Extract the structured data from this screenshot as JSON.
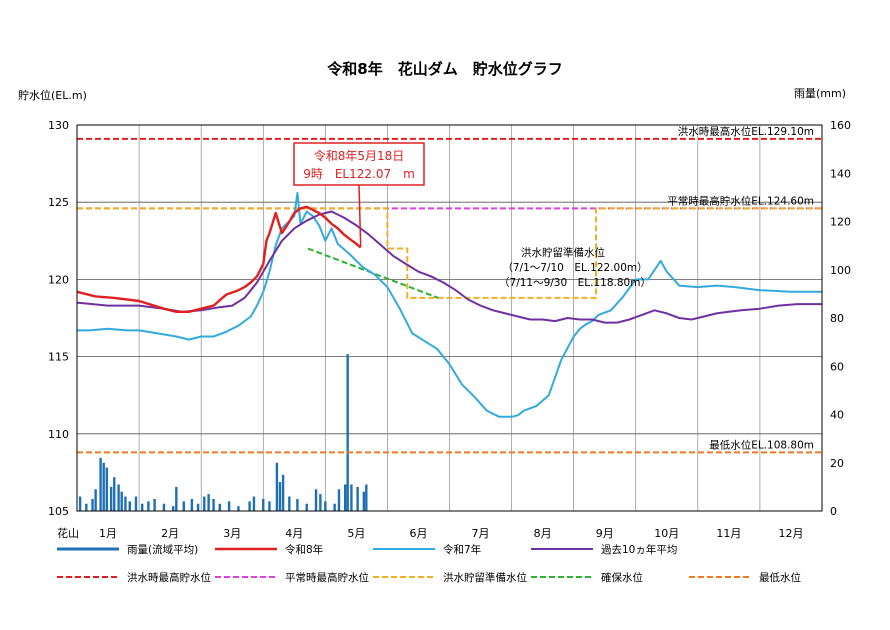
{
  "chart_data": {
    "type": "line",
    "title": "令和8年　花山ダム　貯水位グラフ",
    "ylabel_left": "貯水位(EL.m)",
    "ylabel_right": "雨量(mm)",
    "ylim_left": [
      105,
      130
    ],
    "yticks_left": [
      105,
      110,
      115,
      120,
      125,
      130
    ],
    "ylim_right": [
      0,
      160
    ],
    "yticks_right": [
      0,
      20,
      40,
      60,
      80,
      100,
      120,
      140,
      160
    ],
    "x_axis_start_label": "花山",
    "xlim_months": [
      0,
      12
    ],
    "month_labels": [
      "1月",
      "2月",
      "3月",
      "4月",
      "5月",
      "6月",
      "7月",
      "8月",
      "9月",
      "10月",
      "11月",
      "12月"
    ],
    "current_value": {
      "label_line1": "令和8年5月18日",
      "label_line2": "9時　EL122.07　m",
      "month": 4.57,
      "level": 122.07
    },
    "reference_lines": [
      {
        "name": "洪水時最高貯水位",
        "value": 129.1,
        "label": "洪水時最高水位EL.129.10m",
        "color": "#e02020"
      },
      {
        "name": "平常時最高貯水位",
        "value": 124.6,
        "label": "平常時最高貯水位EL.124.60m",
        "color": "#e040e0"
      },
      {
        "name": "最低水位",
        "value": 108.8,
        "label": "最低水位EL.108.80m",
        "color": "#f07820"
      }
    ],
    "flood_prep_label": [
      "洪水貯留準備水位",
      "（7/1～7/10　EL.122.00m）",
      "（7/11～9/30　EL.118.80m）"
    ],
    "flood_prep_line": {
      "name": "洪水貯留準備水位",
      "color": "#f0b020",
      "x": [
        0,
        5.0,
        5.0,
        5.32,
        5.32,
        8.36,
        8.36,
        12
      ],
      "y": [
        124.6,
        124.6,
        122.0,
        122.0,
        118.8,
        118.8,
        124.6,
        124.6
      ]
    },
    "secure_line": {
      "name": "確保水位",
      "color": "#30b030",
      "x": [
        3.72,
        5.82
      ],
      "y": [
        122.0,
        118.8
      ]
    },
    "series": [
      {
        "name": "令和8年",
        "color": "#e02020",
        "x": [
          0,
          0.3,
          0.6,
          1.0,
          1.4,
          1.6,
          1.8,
          2.0,
          2.2,
          2.4,
          2.6,
          2.7,
          2.8,
          2.9,
          3.0,
          3.05,
          3.1,
          3.2,
          3.3,
          3.4,
          3.5,
          3.6,
          3.7,
          3.8,
          3.9,
          4.0,
          4.1,
          4.2,
          4.3,
          4.4,
          4.5,
          4.57
        ],
        "y": [
          119.2,
          118.9,
          118.8,
          118.6,
          118.1,
          117.9,
          117.9,
          118.1,
          118.3,
          119.0,
          119.3,
          119.5,
          119.8,
          120.2,
          121.0,
          122.5,
          123.0,
          124.3,
          123.0,
          123.6,
          124.3,
          124.6,
          124.7,
          124.5,
          124.3,
          124.0,
          123.6,
          123.3,
          122.9,
          122.6,
          122.3,
          122.07
        ]
      },
      {
        "name": "令和7年",
        "color": "#33aadd",
        "x": [
          0,
          0.2,
          0.5,
          0.8,
          1.0,
          1.3,
          1.6,
          1.8,
          2.0,
          2.2,
          2.4,
          2.6,
          2.8,
          2.9,
          3.0,
          3.1,
          3.2,
          3.3,
          3.4,
          3.5,
          3.55,
          3.6,
          3.7,
          3.8,
          3.9,
          4.0,
          4.1,
          4.2,
          4.4,
          4.6,
          4.8,
          5.0,
          5.2,
          5.4,
          5.6,
          5.8,
          6.0,
          6.2,
          6.4,
          6.6,
          6.8,
          7.0,
          7.1,
          7.2,
          7.4,
          7.6,
          7.8,
          8.0,
          8.1,
          8.2,
          8.3,
          8.4,
          8.6,
          8.8,
          9.0,
          9.2,
          9.4,
          9.5,
          9.7,
          10.0,
          10.3,
          10.6,
          11.0,
          11.5,
          12.0
        ],
        "y": [
          116.7,
          116.7,
          116.8,
          116.7,
          116.7,
          116.5,
          116.3,
          116.1,
          116.3,
          116.3,
          116.6,
          117.0,
          117.6,
          118.3,
          119.2,
          120.5,
          122.2,
          123.3,
          123.7,
          124.1,
          125.6,
          123.6,
          124.4,
          124.1,
          123.5,
          122.5,
          123.3,
          122.3,
          121.6,
          120.8,
          120.3,
          119.5,
          118.1,
          116.5,
          116.0,
          115.5,
          114.5,
          113.2,
          112.4,
          111.5,
          111.1,
          111.1,
          111.2,
          111.5,
          111.8,
          112.5,
          114.8,
          116.3,
          116.8,
          117.1,
          117.3,
          117.7,
          118.0,
          118.9,
          120.0,
          120.0,
          121.2,
          120.5,
          119.6,
          119.5,
          119.6,
          119.5,
          119.3,
          119.2,
          119.2
        ]
      },
      {
        "name": "過去10ヵ年平均",
        "color": "#7030a0",
        "x": [
          0,
          0.5,
          1.0,
          1.4,
          1.7,
          2.0,
          2.3,
          2.5,
          2.7,
          2.9,
          3.1,
          3.3,
          3.5,
          3.7,
          3.9,
          4.1,
          4.3,
          4.5,
          4.7,
          4.9,
          5.1,
          5.3,
          5.5,
          5.7,
          5.9,
          6.1,
          6.3,
          6.5,
          6.7,
          6.9,
          7.1,
          7.3,
          7.5,
          7.7,
          7.9,
          8.1,
          8.3,
          8.5,
          8.7,
          8.9,
          9.1,
          9.3,
          9.5,
          9.7,
          9.9,
          10.1,
          10.3,
          10.5,
          10.7,
          11.0,
          11.3,
          11.6,
          12.0
        ],
        "y": [
          118.5,
          118.3,
          118.3,
          118.1,
          117.9,
          118.0,
          118.2,
          118.3,
          118.8,
          119.8,
          121.2,
          122.5,
          123.3,
          123.8,
          124.2,
          124.4,
          124.0,
          123.5,
          122.9,
          122.2,
          121.5,
          121.0,
          120.5,
          120.2,
          119.8,
          119.3,
          118.7,
          118.3,
          118.0,
          117.8,
          117.6,
          117.4,
          117.4,
          117.3,
          117.5,
          117.4,
          117.4,
          117.2,
          117.2,
          117.4,
          117.7,
          118.0,
          117.8,
          117.5,
          117.4,
          117.6,
          117.8,
          117.9,
          118.0,
          118.1,
          118.3,
          118.4,
          118.4
        ]
      }
    ],
    "rainfall": {
      "name": "雨量(流域平均)",
      "color": "#1f6fb5",
      "bars": [
        {
          "x": 0.05,
          "v": 6
        },
        {
          "x": 0.15,
          "v": 3
        },
        {
          "x": 0.25,
          "v": 5
        },
        {
          "x": 0.3,
          "v": 9
        },
        {
          "x": 0.38,
          "v": 22
        },
        {
          "x": 0.43,
          "v": 20
        },
        {
          "x": 0.48,
          "v": 18
        },
        {
          "x": 0.55,
          "v": 10
        },
        {
          "x": 0.6,
          "v": 14
        },
        {
          "x": 0.67,
          "v": 11
        },
        {
          "x": 0.72,
          "v": 8
        },
        {
          "x": 0.78,
          "v": 6
        },
        {
          "x": 0.85,
          "v": 4
        },
        {
          "x": 0.95,
          "v": 6
        },
        {
          "x": 1.05,
          "v": 3
        },
        {
          "x": 1.15,
          "v": 4
        },
        {
          "x": 1.25,
          "v": 5
        },
        {
          "x": 1.4,
          "v": 3
        },
        {
          "x": 1.55,
          "v": 2
        },
        {
          "x": 1.6,
          "v": 10
        },
        {
          "x": 1.72,
          "v": 4
        },
        {
          "x": 1.85,
          "v": 5
        },
        {
          "x": 1.95,
          "v": 3
        },
        {
          "x": 2.05,
          "v": 6
        },
        {
          "x": 2.12,
          "v": 7
        },
        {
          "x": 2.2,
          "v": 5
        },
        {
          "x": 2.3,
          "v": 3
        },
        {
          "x": 2.45,
          "v": 4
        },
        {
          "x": 2.6,
          "v": 2
        },
        {
          "x": 2.78,
          "v": 4
        },
        {
          "x": 2.85,
          "v": 6
        },
        {
          "x": 3.0,
          "v": 5
        },
        {
          "x": 3.1,
          "v": 4
        },
        {
          "x": 3.22,
          "v": 20
        },
        {
          "x": 3.27,
          "v": 12
        },
        {
          "x": 3.32,
          "v": 15
        },
        {
          "x": 3.42,
          "v": 6
        },
        {
          "x": 3.55,
          "v": 5
        },
        {
          "x": 3.7,
          "v": 3
        },
        {
          "x": 3.85,
          "v": 9
        },
        {
          "x": 3.92,
          "v": 7
        },
        {
          "x": 4.0,
          "v": 4
        },
        {
          "x": 4.15,
          "v": 3
        },
        {
          "x": 4.22,
          "v": 9
        },
        {
          "x": 4.32,
          "v": 11
        },
        {
          "x": 4.36,
          "v": 65
        },
        {
          "x": 4.42,
          "v": 11
        },
        {
          "x": 4.52,
          "v": 10
        },
        {
          "x": 4.62,
          "v": 8
        },
        {
          "x": 4.66,
          "v": 11
        }
      ]
    }
  }
}
